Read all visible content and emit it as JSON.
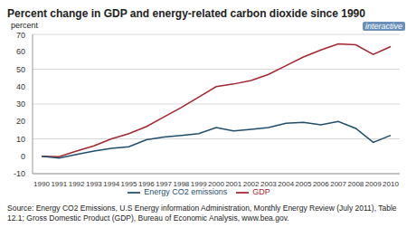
{
  "chart_data": {
    "type": "line",
    "title": "Percent change in GDP and energy-related carbon dioxide since 1990",
    "y_label": "percent",
    "annotations": [
      "interactive"
    ],
    "source": "Source: Energy CO2 Emissions, U.S Energy information Administration, Monthly Energy Review (July 2011), Table 12.1; Gross Domestic Product (GDP), Bureau of Economic Analysis, www.bea.gov.",
    "categories": [
      "1990",
      "1991",
      "1992",
      "1993",
      "1994",
      "1995",
      "1996",
      "1997",
      "1998",
      "1999",
      "2000",
      "2001",
      "2002",
      "2003",
      "2004",
      "2005",
      "2006",
      "2007",
      "2008",
      "2009",
      "2010"
    ],
    "series": [
      {
        "name": "GDP",
        "color": "#a3272f",
        "values": [
          0,
          -0.2,
          3,
          6,
          10,
          13,
          17,
          22.5,
          28,
          34,
          40,
          41.5,
          43.5,
          47,
          52,
          57,
          61,
          64.5,
          64,
          58.5,
          63
        ]
      },
      {
        "name": "Energy CO2 emissions",
        "color": "#1f4e6b",
        "values": [
          0,
          -1,
          1,
          3,
          4.5,
          5.5,
          9.5,
          11,
          12,
          13,
          16.5,
          14.5,
          15.5,
          16.5,
          19,
          19.5,
          18,
          20,
          16,
          8,
          12
        ]
      }
    ],
    "ylim": [
      -10,
      70
    ],
    "yticks": [
      -10,
      0,
      10,
      20,
      30,
      40,
      50,
      60,
      70
    ],
    "grid": true,
    "legend": "bottom"
  }
}
